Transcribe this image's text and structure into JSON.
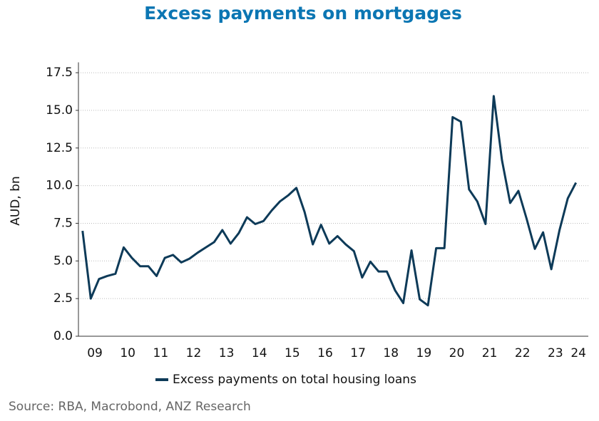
{
  "chart_data": {
    "type": "line",
    "title": "Excess payments on mortgages",
    "ylabel": "AUD, bn",
    "source": "Source: RBA, Macrobond, ANZ Research",
    "x": [
      2009.125,
      2009.375,
      2009.625,
      2009.875,
      2010.125,
      2010.375,
      2010.625,
      2010.875,
      2011.125,
      2011.375,
      2011.625,
      2011.875,
      2012.125,
      2012.375,
      2012.625,
      2012.875,
      2013.125,
      2013.375,
      2013.625,
      2013.875,
      2014.125,
      2014.375,
      2014.625,
      2014.875,
      2015.125,
      2015.375,
      2015.625,
      2015.875,
      2016.125,
      2016.375,
      2016.625,
      2016.875,
      2017.125,
      2017.375,
      2017.625,
      2017.875,
      2018.125,
      2018.375,
      2018.625,
      2018.875,
      2019.125,
      2019.375,
      2019.625,
      2019.875,
      2020.125,
      2020.375,
      2020.625,
      2020.875,
      2021.125,
      2021.375,
      2021.625,
      2021.875,
      2022.125,
      2022.375,
      2022.625,
      2022.875,
      2023.125,
      2023.375,
      2023.625,
      2023.875,
      2024.125
    ],
    "series": [
      {
        "name": "Excess payments on total housing loans",
        "color": "#0d3a58",
        "values": [
          7.0,
          2.5,
          3.8,
          4.0,
          4.15,
          5.9,
          5.2,
          4.65,
          4.65,
          4.0,
          5.2,
          5.4,
          4.9,
          5.15,
          5.55,
          5.9,
          6.25,
          7.05,
          6.15,
          6.85,
          7.9,
          7.45,
          7.65,
          8.35,
          8.95,
          9.35,
          9.85,
          8.25,
          6.1,
          7.4,
          6.15,
          6.65,
          6.1,
          5.65,
          3.9,
          4.95,
          4.3,
          4.3,
          3.05,
          2.2,
          5.7,
          2.45,
          2.05,
          5.85,
          5.85,
          14.55,
          14.25,
          9.75,
          8.95,
          7.45,
          15.95,
          11.7,
          8.85,
          9.65,
          7.8,
          5.8,
          6.9,
          4.45,
          7.05,
          9.15,
          10.2
        ]
      }
    ],
    "xlim": [
      2009.0,
      2024.5
    ],
    "xticks": [
      {
        "value": 2009.5,
        "label": "09"
      },
      {
        "value": 2010.5,
        "label": "10"
      },
      {
        "value": 2011.5,
        "label": "11"
      },
      {
        "value": 2012.5,
        "label": "12"
      },
      {
        "value": 2013.5,
        "label": "13"
      },
      {
        "value": 2014.5,
        "label": "14"
      },
      {
        "value": 2015.5,
        "label": "15"
      },
      {
        "value": 2016.5,
        "label": "16"
      },
      {
        "value": 2017.5,
        "label": "17"
      },
      {
        "value": 2018.5,
        "label": "18"
      },
      {
        "value": 2019.5,
        "label": "19"
      },
      {
        "value": 2020.5,
        "label": "20"
      },
      {
        "value": 2021.5,
        "label": "21"
      },
      {
        "value": 2022.5,
        "label": "22"
      },
      {
        "value": 2023.5,
        "label": "23"
      },
      {
        "value": 2024.2,
        "label": "24"
      }
    ],
    "ylim": [
      0,
      18
    ],
    "yticks": [
      {
        "value": 0,
        "label": "0.0"
      },
      2.5,
      {
        "value": 5,
        "label": "5.0"
      },
      7.5,
      {
        "value": 10,
        "label": "10.0"
      },
      12.5,
      {
        "value": 15,
        "label": "15.0"
      },
      17.5
    ],
    "grid": true
  }
}
